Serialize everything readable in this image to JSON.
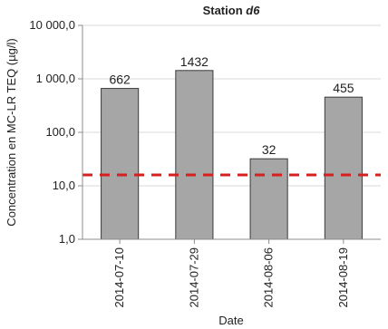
{
  "chart_data": {
    "type": "bar",
    "title_prefix": "Station ",
    "title_station": "d6",
    "xlabel": "Date",
    "ylabel": "Concentration en MC-LR TEQ (µg/l)",
    "y_scale": "log",
    "ylim": [
      1,
      10000
    ],
    "y_ticks": [
      1,
      10,
      100,
      1000,
      10000
    ],
    "y_tick_labels": [
      "1,0",
      "10,0",
      "100,0",
      "1 000,0",
      "10 000,0"
    ],
    "categories": [
      "2014-07-10",
      "2014-07-29",
      "2014-08-06",
      "2014-08-19"
    ],
    "values": [
      662,
      1432,
      32,
      455
    ],
    "data_labels": [
      "662",
      "1432",
      "32",
      "455"
    ],
    "threshold": 16,
    "grid": true,
    "legend": "none",
    "colors": {
      "bar_fill": "#a6a6a6",
      "bar_stroke": "#3a3a3a",
      "threshold_line": "#d62020",
      "grid": "#d9d9d9",
      "axis": "#8c8c8c"
    }
  }
}
